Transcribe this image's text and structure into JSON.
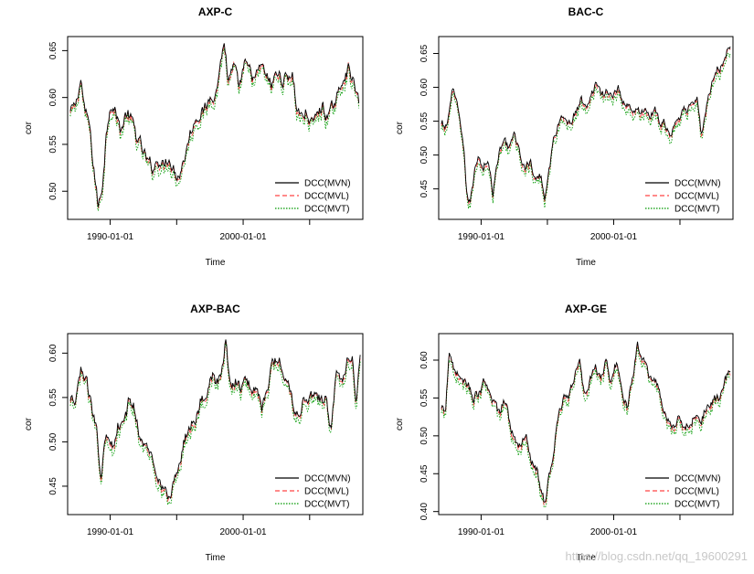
{
  "chart_data": [
    {
      "type": "line",
      "title": "AXP-C",
      "xlabel": "Time",
      "ylabel": "cor",
      "xlim": [
        1986.8,
        2009.0
      ],
      "xticks": [
        {
          "v": 1990,
          "label": "1990-01-01"
        },
        {
          "v": 2000,
          "label": "2000-01-01"
        }
      ],
      "xminor": [
        1995,
        2005
      ],
      "ylim": [
        0.47,
        0.665
      ],
      "yticks": [
        0.5,
        0.55,
        0.6,
        0.65
      ],
      "legend_position": "bottom-right",
      "series_names": [
        "DCC(MVN)",
        "DCC(MVL)",
        "DCC(MVT)"
      ],
      "colors": [
        "#000000",
        "#ff4444",
        "#009900"
      ],
      "anchors": [
        [
          1987.0,
          0.585
        ],
        [
          1987.4,
          0.592
        ],
        [
          1987.8,
          0.62
        ],
        [
          1988.1,
          0.583
        ],
        [
          1988.4,
          0.575
        ],
        [
          1988.6,
          0.545
        ],
        [
          1988.9,
          0.51
        ],
        [
          1989.1,
          0.482
        ],
        [
          1989.4,
          0.505
        ],
        [
          1989.7,
          0.56
        ],
        [
          1990.0,
          0.595
        ],
        [
          1990.4,
          0.585
        ],
        [
          1990.8,
          0.565
        ],
        [
          1991.2,
          0.583
        ],
        [
          1991.6,
          0.576
        ],
        [
          1992.0,
          0.558
        ],
        [
          1992.4,
          0.545
        ],
        [
          1992.8,
          0.532
        ],
        [
          1993.2,
          0.524
        ],
        [
          1993.6,
          0.535
        ],
        [
          1994.0,
          0.527
        ],
        [
          1994.4,
          0.538
        ],
        [
          1994.8,
          0.524
        ],
        [
          1995.2,
          0.516
        ],
        [
          1995.6,
          0.538
        ],
        [
          1996.0,
          0.56
        ],
        [
          1996.4,
          0.578
        ],
        [
          1996.8,
          0.585
        ],
        [
          1997.2,
          0.586
        ],
        [
          1997.6,
          0.605
        ],
        [
          1998.0,
          0.606
        ],
        [
          1998.3,
          0.64
        ],
        [
          1998.6,
          0.658
        ],
        [
          1998.9,
          0.615
        ],
        [
          1999.3,
          0.632
        ],
        [
          1999.7,
          0.61
        ],
        [
          2000.1,
          0.635
        ],
        [
          2000.5,
          0.628
        ],
        [
          2000.9,
          0.618
        ],
        [
          2001.3,
          0.634
        ],
        [
          2001.7,
          0.625
        ],
        [
          2002.1,
          0.612
        ],
        [
          2002.5,
          0.626
        ],
        [
          2002.9,
          0.62
        ],
        [
          2003.3,
          0.622
        ],
        [
          2003.7,
          0.626
        ],
        [
          2004.0,
          0.59
        ],
        [
          2004.4,
          0.58
        ],
        [
          2004.8,
          0.584
        ],
        [
          2005.2,
          0.572
        ],
        [
          2005.6,
          0.584
        ],
        [
          2006.0,
          0.59
        ],
        [
          2006.4,
          0.578
        ],
        [
          2006.8,
          0.592
        ],
        [
          2007.2,
          0.605
        ],
        [
          2007.6,
          0.625
        ],
        [
          2008.0,
          0.633
        ],
        [
          2008.4,
          0.61
        ],
        [
          2008.7,
          0.595
        ]
      ]
    },
    {
      "type": "line",
      "title": "BAC-C",
      "xlabel": "Time",
      "ylabel": "cor",
      "xlim": [
        1986.8,
        2009.0
      ],
      "xticks": [
        {
          "v": 1990,
          "label": "1990-01-01"
        },
        {
          "v": 2000,
          "label": "2000-01-01"
        }
      ],
      "xminor": [
        1995,
        2005
      ],
      "ylim": [
        0.405,
        0.675
      ],
      "yticks": [
        0.45,
        0.5,
        0.55,
        0.6,
        0.65
      ],
      "legend_position": "bottom-right",
      "series_names": [
        "DCC(MVN)",
        "DCC(MVL)",
        "DCC(MVT)"
      ],
      "colors": [
        "#000000",
        "#ff4444",
        "#009900"
      ],
      "anchors": [
        [
          1987.0,
          0.545
        ],
        [
          1987.4,
          0.54
        ],
        [
          1987.8,
          0.594
        ],
        [
          1988.1,
          0.58
        ],
        [
          1988.4,
          0.548
        ],
        [
          1988.7,
          0.515
        ],
        [
          1988.9,
          0.44
        ],
        [
          1989.2,
          0.43
        ],
        [
          1989.5,
          0.478
        ],
        [
          1989.8,
          0.505
        ],
        [
          1990.1,
          0.48
        ],
        [
          1990.5,
          0.495
        ],
        [
          1990.9,
          0.443
        ],
        [
          1991.3,
          0.5
        ],
        [
          1991.7,
          0.52
        ],
        [
          1992.1,
          0.515
        ],
        [
          1992.5,
          0.528
        ],
        [
          1992.9,
          0.505
        ],
        [
          1993.3,
          0.48
        ],
        [
          1993.7,
          0.49
        ],
        [
          1994.1,
          0.46
        ],
        [
          1994.5,
          0.47
        ],
        [
          1994.8,
          0.44
        ],
        [
          1995.1,
          0.476
        ],
        [
          1995.5,
          0.526
        ],
        [
          1995.9,
          0.553
        ],
        [
          1996.3,
          0.552
        ],
        [
          1996.7,
          0.548
        ],
        [
          1997.1,
          0.562
        ],
        [
          1997.5,
          0.58
        ],
        [
          1997.9,
          0.572
        ],
        [
          1998.3,
          0.592
        ],
        [
          1998.7,
          0.608
        ],
        [
          1999.1,
          0.586
        ],
        [
          1999.5,
          0.593
        ],
        [
          1999.9,
          0.588
        ],
        [
          2000.3,
          0.6
        ],
        [
          2000.7,
          0.58
        ],
        [
          2001.1,
          0.575
        ],
        [
          2001.5,
          0.566
        ],
        [
          2001.9,
          0.56
        ],
        [
          2002.3,
          0.57
        ],
        [
          2002.7,
          0.558
        ],
        [
          2003.1,
          0.566
        ],
        [
          2003.5,
          0.548
        ],
        [
          2003.9,
          0.545
        ],
        [
          2004.3,
          0.532
        ],
        [
          2004.7,
          0.55
        ],
        [
          2005.1,
          0.56
        ],
        [
          2005.5,
          0.566
        ],
        [
          2005.9,
          0.58
        ],
        [
          2006.3,
          0.592
        ],
        [
          2006.6,
          0.528
        ],
        [
          2006.9,
          0.56
        ],
        [
          2007.3,
          0.6
        ],
        [
          2007.7,
          0.628
        ],
        [
          2008.1,
          0.632
        ],
        [
          2008.5,
          0.648
        ],
        [
          2008.8,
          0.668
        ]
      ]
    },
    {
      "type": "line",
      "title": "AXP-BAC",
      "xlabel": "Time",
      "ylabel": "cor",
      "xlim": [
        1986.8,
        2009.0
      ],
      "xticks": [
        {
          "v": 1990,
          "label": "1990-01-01"
        },
        {
          "v": 2000,
          "label": "2000-01-01"
        }
      ],
      "xminor": [
        1995,
        2005
      ],
      "ylim": [
        0.418,
        0.622
      ],
      "yticks": [
        0.45,
        0.5,
        0.55,
        0.6
      ],
      "legend_position": "bottom-right",
      "series_names": [
        "DCC(MVN)",
        "DCC(MVL)",
        "DCC(MVT)"
      ],
      "colors": [
        "#000000",
        "#ff4444",
        "#009900"
      ],
      "anchors": [
        [
          1987.0,
          0.545
        ],
        [
          1987.4,
          0.542
        ],
        [
          1987.8,
          0.584
        ],
        [
          1988.1,
          0.57
        ],
        [
          1988.4,
          0.556
        ],
        [
          1988.7,
          0.53
        ],
        [
          1989.0,
          0.52
        ],
        [
          1989.3,
          0.46
        ],
        [
          1989.6,
          0.5
        ],
        [
          1989.9,
          0.51
        ],
        [
          1990.2,
          0.5
        ],
        [
          1990.6,
          0.52
        ],
        [
          1991.0,
          0.516
        ],
        [
          1991.4,
          0.545
        ],
        [
          1991.8,
          0.54
        ],
        [
          1992.2,
          0.51
        ],
        [
          1992.6,
          0.494
        ],
        [
          1993.0,
          0.488
        ],
        [
          1993.4,
          0.472
        ],
        [
          1993.8,
          0.456
        ],
        [
          1994.2,
          0.44
        ],
        [
          1994.5,
          0.436
        ],
        [
          1994.8,
          0.456
        ],
        [
          1995.2,
          0.474
        ],
        [
          1995.6,
          0.505
        ],
        [
          1996.0,
          0.52
        ],
        [
          1996.4,
          0.525
        ],
        [
          1996.8,
          0.546
        ],
        [
          1997.2,
          0.552
        ],
        [
          1997.6,
          0.578
        ],
        [
          1998.0,
          0.566
        ],
        [
          1998.4,
          0.575
        ],
        [
          1998.7,
          0.618
        ],
        [
          1999.0,
          0.565
        ],
        [
          1999.4,
          0.57
        ],
        [
          1999.8,
          0.562
        ],
        [
          2000.2,
          0.572
        ],
        [
          2000.6,
          0.56
        ],
        [
          2001.0,
          0.562
        ],
        [
          2001.4,
          0.54
        ],
        [
          2001.8,
          0.565
        ],
        [
          2002.2,
          0.585
        ],
        [
          2002.6,
          0.598
        ],
        [
          2003.0,
          0.58
        ],
        [
          2003.4,
          0.568
        ],
        [
          2003.8,
          0.542
        ],
        [
          2004.2,
          0.528
        ],
        [
          2004.6,
          0.552
        ],
        [
          2005.0,
          0.55
        ],
        [
          2005.4,
          0.558
        ],
        [
          2005.8,
          0.545
        ],
        [
          2006.2,
          0.55
        ],
        [
          2006.6,
          0.514
        ],
        [
          2007.0,
          0.575
        ],
        [
          2007.4,
          0.57
        ],
        [
          2007.8,
          0.59
        ],
        [
          2008.2,
          0.602
        ],
        [
          2008.5,
          0.545
        ],
        [
          2008.8,
          0.604
        ]
      ]
    },
    {
      "type": "line",
      "title": "AXP-GE",
      "xlabel": "Time",
      "ylabel": "cor",
      "xlim": [
        1986.8,
        2009.0
      ],
      "xticks": [
        {
          "v": 1990,
          "label": "1990-01-01"
        },
        {
          "v": 2000,
          "label": "2000-01-01"
        }
      ],
      "xminor": [
        1995,
        2005
      ],
      "ylim": [
        0.396,
        0.635
      ],
      "yticks": [
        0.4,
        0.45,
        0.5,
        0.55,
        0.6
      ],
      "legend_position": "bottom-right",
      "series_names": [
        "DCC(MVN)",
        "DCC(MVL)",
        "DCC(MVT)"
      ],
      "colors": [
        "#000000",
        "#ff4444",
        "#009900"
      ],
      "anchors": [
        [
          1987.0,
          0.535
        ],
        [
          1987.3,
          0.53
        ],
        [
          1987.6,
          0.61
        ],
        [
          1987.9,
          0.595
        ],
        [
          1988.2,
          0.585
        ],
        [
          1988.6,
          0.575
        ],
        [
          1989.0,
          0.568
        ],
        [
          1989.4,
          0.552
        ],
        [
          1989.8,
          0.552
        ],
        [
          1990.2,
          0.57
        ],
        [
          1990.6,
          0.552
        ],
        [
          1991.0,
          0.546
        ],
        [
          1991.4,
          0.53
        ],
        [
          1991.8,
          0.548
        ],
        [
          1992.2,
          0.515
        ],
        [
          1992.6,
          0.492
        ],
        [
          1993.0,
          0.49
        ],
        [
          1993.4,
          0.508
        ],
        [
          1993.8,
          0.47
        ],
        [
          1994.2,
          0.455
        ],
        [
          1994.5,
          0.43
        ],
        [
          1994.8,
          0.408
        ],
        [
          1995.1,
          0.445
        ],
        [
          1995.4,
          0.47
        ],
        [
          1995.8,
          0.52
        ],
        [
          1996.2,
          0.55
        ],
        [
          1996.6,
          0.555
        ],
        [
          1997.0,
          0.574
        ],
        [
          1997.4,
          0.6
        ],
        [
          1997.8,
          0.56
        ],
        [
          1998.2,
          0.575
        ],
        [
          1998.6,
          0.588
        ],
        [
          1999.0,
          0.576
        ],
        [
          1999.4,
          0.596
        ],
        [
          1999.8,
          0.57
        ],
        [
          2000.2,
          0.6
        ],
        [
          2000.6,
          0.565
        ],
        [
          2001.0,
          0.536
        ],
        [
          2001.4,
          0.57
        ],
        [
          2001.8,
          0.625
        ],
        [
          2002.2,
          0.6
        ],
        [
          2002.6,
          0.58
        ],
        [
          2003.0,
          0.57
        ],
        [
          2003.4,
          0.565
        ],
        [
          2003.8,
          0.53
        ],
        [
          2004.2,
          0.52
        ],
        [
          2004.6,
          0.51
        ],
        [
          2005.0,
          0.522
        ],
        [
          2005.4,
          0.51
        ],
        [
          2005.8,
          0.516
        ],
        [
          2006.2,
          0.528
        ],
        [
          2006.6,
          0.52
        ],
        [
          2007.0,
          0.538
        ],
        [
          2007.4,
          0.545
        ],
        [
          2007.8,
          0.548
        ],
        [
          2008.2,
          0.56
        ],
        [
          2008.5,
          0.576
        ],
        [
          2008.8,
          0.585
        ]
      ]
    }
  ],
  "watermark": "https://blog.csdn.net/qq_19600291"
}
